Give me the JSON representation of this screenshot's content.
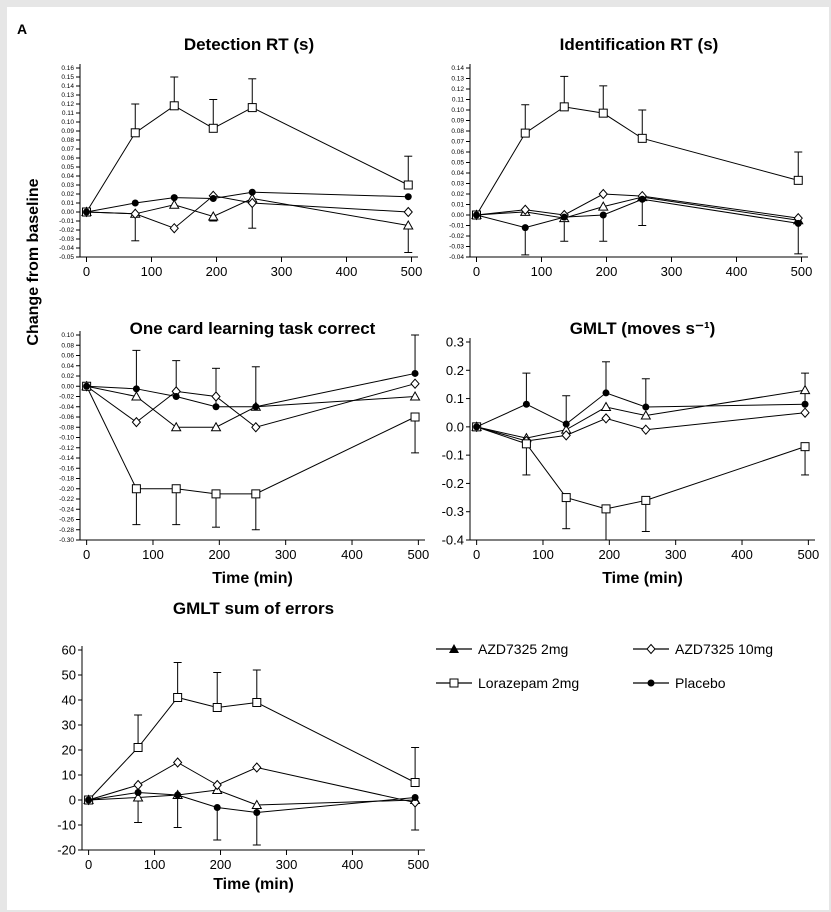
{
  "figure": {
    "panel_letter": "A",
    "y_axis_title": "Change from baseline",
    "x_axis_title": "Time (min)"
  },
  "legend": [
    {
      "label": "AZD7325 2mg",
      "marker": "triangle-filled"
    },
    {
      "label": "AZD7325 10mg",
      "marker": "diamond-open"
    },
    {
      "label": "Lorazepam 2mg",
      "marker": "square-open"
    },
    {
      "label": "Placebo",
      "marker": "circle-filled"
    }
  ],
  "chart_data": [
    {
      "type": "line",
      "title": "Detection RT (s)",
      "xlabel": "",
      "ylabel": "",
      "x": [
        0,
        75,
        135,
        195,
        255,
        495
      ],
      "xlim": [
        -10,
        510
      ],
      "xticks": [
        0,
        100,
        200,
        300,
        400,
        500
      ],
      "ylim": [
        -0.05,
        0.16
      ],
      "ytick_labels": [
        "0.16",
        "0.15",
        "0.14",
        "0.13",
        "0.12",
        "0.11",
        "0.10",
        "0.09",
        "0.08",
        "0.07",
        "0.06",
        "0.05",
        "0.04",
        "0.03",
        "0.02",
        "0.01",
        "0.00",
        "-0.01",
        "-0.02",
        "-0.03",
        "-0.04",
        "-0.05"
      ],
      "series": [
        {
          "name": "AZD7325 2mg",
          "values": [
            0.0,
            -0.002,
            0.008,
            -0.005,
            0.015,
            -0.015
          ]
        },
        {
          "name": "AZD7325 10mg",
          "values": [
            0.0,
            -0.002,
            -0.018,
            0.018,
            0.01,
            0.0
          ]
        },
        {
          "name": "Lorazepam 2mg",
          "values": [
            0.0,
            0.088,
            0.118,
            0.093,
            0.116,
            0.03
          ],
          "error": [
            0,
            0.03,
            0.03,
            0.03,
            0.03,
            0.03
          ]
        },
        {
          "name": "Placebo",
          "values": [
            0.0,
            0.01,
            0.016,
            0.015,
            0.022,
            0.017
          ]
        }
      ],
      "error_bars": {
        "series": "Lorazepam 2mg",
        "upper": [
          0,
          0.12,
          0.15,
          0.125,
          0.148,
          0.062
        ]
      },
      "extra_error_bars": [
        {
          "x": 75,
          "low": -0.032,
          "high": null
        },
        {
          "x": 195,
          "low": -0.01,
          "high": null
        },
        {
          "x": 255,
          "low": -0.018,
          "high": null
        },
        {
          "x": 495,
          "low": -0.045,
          "high": null
        }
      ]
    },
    {
      "type": "line",
      "title": "Identification RT (s)",
      "xlabel": "",
      "ylabel": "",
      "x": [
        0,
        75,
        135,
        195,
        255,
        495
      ],
      "xlim": [
        -10,
        510
      ],
      "xticks": [
        0,
        100,
        200,
        300,
        400,
        500
      ],
      "ylim": [
        -0.04,
        0.14
      ],
      "ytick_labels": [
        "0.14",
        "0.13",
        "0.12",
        "0.11",
        "0.10",
        "0.09",
        "0.08",
        "0.07",
        "0.06",
        "0.05",
        "0.04",
        "0.03",
        "0.02",
        "0.01",
        "0.00",
        "-0.01",
        "-0.02",
        "-0.03",
        "-0.04"
      ],
      "series": [
        {
          "name": "AZD7325 2mg",
          "values": [
            0.0,
            0.003,
            -0.003,
            0.008,
            0.017,
            -0.005
          ]
        },
        {
          "name": "AZD7325 10mg",
          "values": [
            0.0,
            0.005,
            0.0,
            0.02,
            0.018,
            -0.003
          ]
        },
        {
          "name": "Lorazepam 2mg",
          "values": [
            0.0,
            0.078,
            0.103,
            0.097,
            0.073,
            0.033
          ]
        },
        {
          "name": "Placebo",
          "values": [
            0.0,
            -0.012,
            -0.002,
            0.0,
            0.015,
            -0.008
          ]
        }
      ],
      "error_bars": {
        "series": "Lorazepam 2mg",
        "upper": [
          0,
          0.105,
          0.132,
          0.123,
          0.1,
          0.06
        ]
      },
      "extra_error_bars": [
        {
          "x": 75,
          "low": -0.038,
          "high": null
        },
        {
          "x": 135,
          "low": -0.025,
          "high": null
        },
        {
          "x": 195,
          "low": -0.025,
          "high": null
        },
        {
          "x": 255,
          "low": -0.01,
          "high": null
        },
        {
          "x": 495,
          "low": -0.037,
          "high": null
        }
      ]
    },
    {
      "type": "line",
      "title": "One card learning task correct",
      "xlabel": "Time (min)",
      "ylabel": "",
      "x": [
        0,
        75,
        135,
        195,
        255,
        495
      ],
      "xlim": [
        -10,
        510
      ],
      "xticks": [
        0,
        100,
        200,
        300,
        400,
        500
      ],
      "ylim": [
        -0.3,
        0.1
      ],
      "ytick_labels": [
        "0.10",
        "0.08",
        "0.06",
        "0.04",
        "0.02",
        "0.00",
        "-0.02",
        "-0.04",
        "-0.06",
        "-0.08",
        "-0.10",
        "-0.12",
        "-0.14",
        "-0.16",
        "-0.18",
        "-0.20",
        "-0.22",
        "-0.24",
        "-0.26",
        "-0.28",
        "-0.30"
      ],
      "series": [
        {
          "name": "AZD7325 2mg",
          "values": [
            0.0,
            -0.02,
            -0.08,
            -0.08,
            -0.04,
            -0.02
          ]
        },
        {
          "name": "AZD7325 10mg",
          "values": [
            0.0,
            -0.07,
            -0.01,
            -0.02,
            -0.08,
            0.005
          ]
        },
        {
          "name": "Lorazepam 2mg",
          "values": [
            0.0,
            -0.2,
            -0.2,
            -0.21,
            -0.21,
            -0.06
          ]
        },
        {
          "name": "Placebo",
          "values": [
            0.0,
            -0.005,
            -0.02,
            -0.04,
            -0.04,
            0.025
          ]
        }
      ],
      "error_bars": {
        "series": "Placebo",
        "upper": [
          0,
          0.07,
          0.05,
          0.035,
          0.038,
          0.1
        ]
      },
      "extra_error_bars": [
        {
          "x": 75,
          "low": -0.27,
          "high": null
        },
        {
          "x": 135,
          "low": -0.27,
          "high": null
        },
        {
          "x": 195,
          "low": -0.275,
          "high": null
        },
        {
          "x": 255,
          "low": -0.28,
          "high": null
        },
        {
          "x": 495,
          "low": -0.13,
          "high": null
        }
      ]
    },
    {
      "type": "line",
      "title": "GMLT (moves s⁻¹)",
      "xlabel": "Time (min)",
      "ylabel": "",
      "x": [
        0,
        75,
        135,
        195,
        255,
        495
      ],
      "xlim": [
        -10,
        510
      ],
      "xticks": [
        0,
        100,
        200,
        300,
        400,
        500
      ],
      "ylim": [
        -0.4,
        0.3
      ],
      "ytick_labels": [
        "0.3",
        "0.2",
        "0.1",
        "0.0",
        "-0.1",
        "-0.2",
        "-0.3",
        "-0.4"
      ],
      "series": [
        {
          "name": "AZD7325 2mg",
          "values": [
            0.0,
            -0.04,
            -0.01,
            0.07,
            0.04,
            0.13
          ]
        },
        {
          "name": "AZD7325 10mg",
          "values": [
            0.0,
            -0.05,
            -0.03,
            0.03,
            -0.01,
            0.05
          ]
        },
        {
          "name": "Lorazepam 2mg",
          "values": [
            0.0,
            -0.06,
            -0.25,
            -0.29,
            -0.26,
            -0.07
          ]
        },
        {
          "name": "Placebo",
          "values": [
            0.0,
            0.08,
            0.01,
            0.12,
            0.07,
            0.08
          ]
        }
      ],
      "error_bars": {
        "series": "Placebo",
        "upper": [
          0,
          0.19,
          0.11,
          0.23,
          0.17,
          0.19
        ]
      },
      "extra_error_bars": [
        {
          "x": 75,
          "low": -0.17,
          "high": null
        },
        {
          "x": 135,
          "low": -0.36,
          "high": null
        },
        {
          "x": 195,
          "low": -0.4,
          "high": null
        },
        {
          "x": 255,
          "low": -0.37,
          "high": null
        },
        {
          "x": 495,
          "low": -0.17,
          "high": null
        }
      ]
    },
    {
      "type": "line",
      "title": "GMLT sum of errors",
      "xlabel": "Time (min)",
      "ylabel": "",
      "x": [
        0,
        75,
        135,
        195,
        255,
        495
      ],
      "xlim": [
        -10,
        510
      ],
      "xticks": [
        0,
        100,
        200,
        300,
        400,
        500
      ],
      "ylim": [
        -20,
        60
      ],
      "ytick_labels": [
        "60",
        "50",
        "40",
        "30",
        "20",
        "10",
        "0",
        "-10",
        "-20"
      ],
      "series": [
        {
          "name": "AZD7325 2mg",
          "values": [
            0,
            1,
            2,
            4,
            -2,
            0
          ]
        },
        {
          "name": "AZD7325 10mg",
          "values": [
            0,
            6,
            15,
            6,
            13,
            -1
          ]
        },
        {
          "name": "Lorazepam 2mg",
          "values": [
            0,
            21,
            41,
            37,
            39,
            7
          ]
        },
        {
          "name": "Placebo",
          "values": [
            0,
            3,
            2,
            -3,
            -5,
            1
          ]
        }
      ],
      "error_bars": {
        "series": "Lorazepam 2mg",
        "upper": [
          0,
          34,
          55,
          51,
          52,
          21
        ]
      },
      "extra_error_bars": [
        {
          "x": 75,
          "low": -9,
          "high": null
        },
        {
          "x": 135,
          "low": -11,
          "high": null
        },
        {
          "x": 195,
          "low": -16,
          "high": null
        },
        {
          "x": 255,
          "low": -18,
          "high": null
        },
        {
          "x": 495,
          "low": -12,
          "high": null
        }
      ]
    }
  ]
}
